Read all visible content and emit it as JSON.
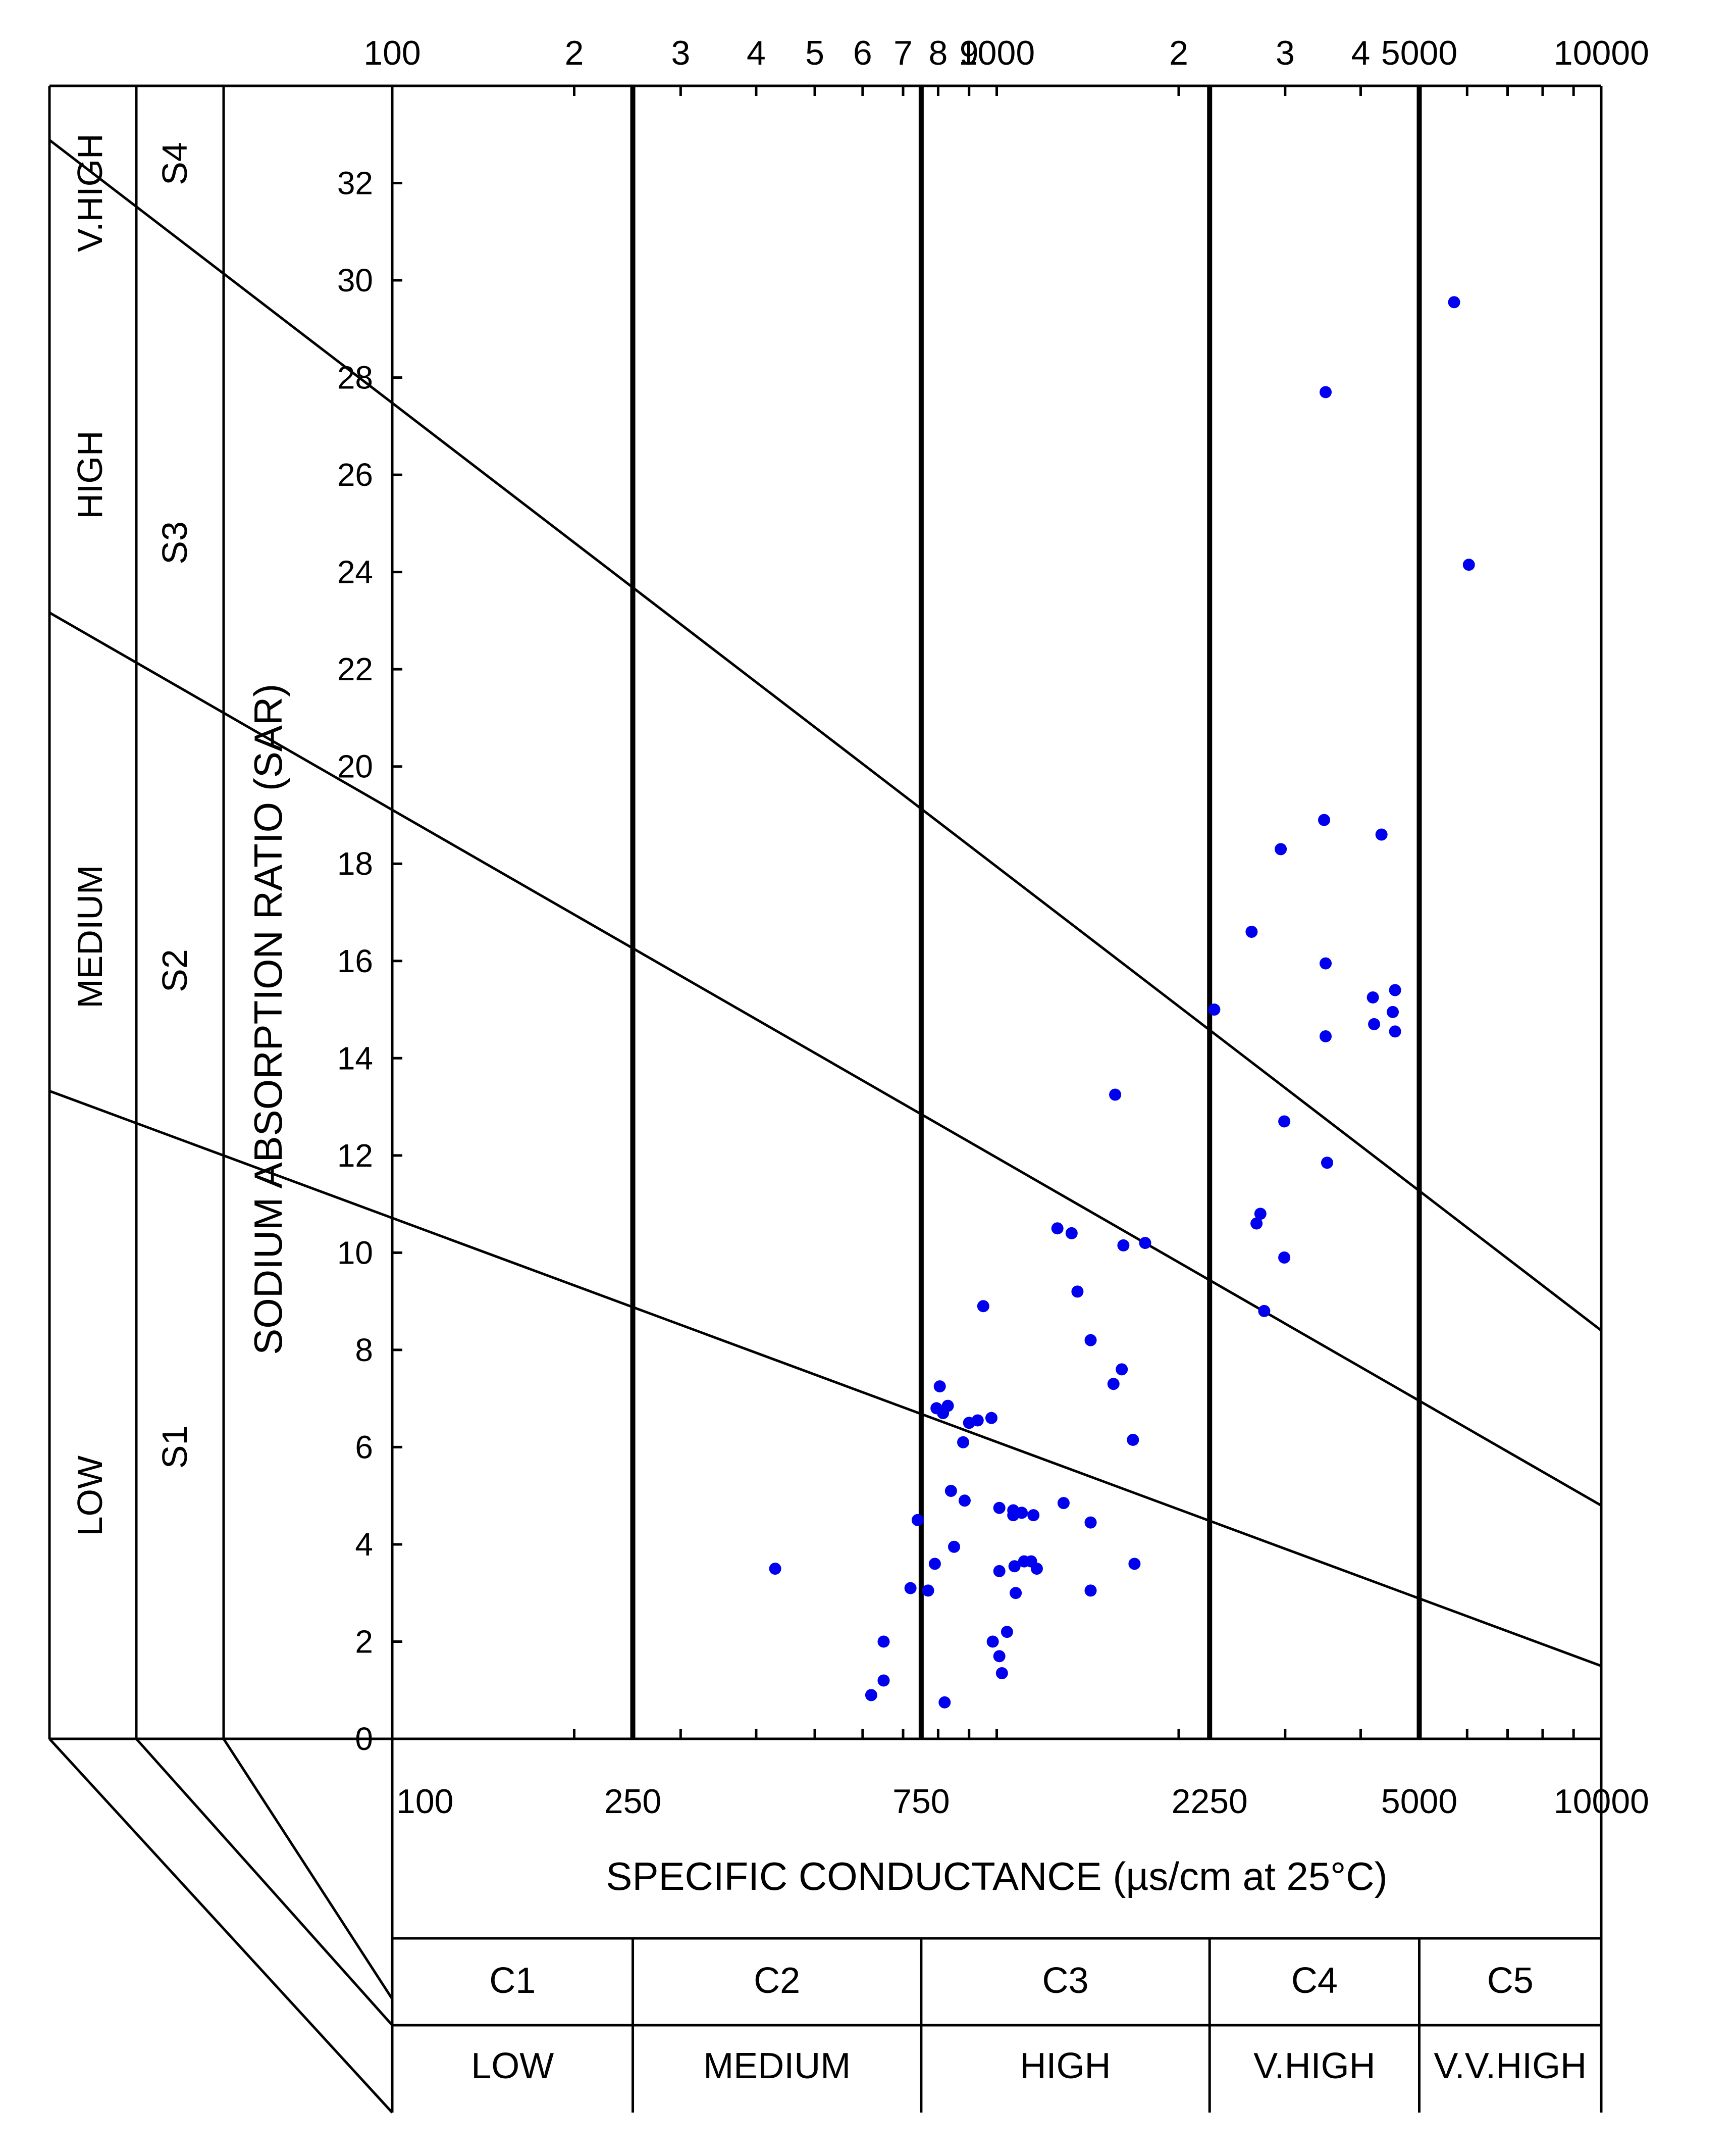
{
  "chart_data": {
    "type": "scatter",
    "title": "",
    "xlabel": "SPECIFIC CONDUCTANCE (µs/cm at 25°C)",
    "ylabel": "SODIUM ABSORPTION RATIO (SAR)",
    "x_scale": "log",
    "xlim": [
      100,
      10000
    ],
    "ylim": [
      0,
      34
    ],
    "grid": false,
    "legend": "none",
    "y_ticks": [
      "0",
      "2",
      "4",
      "6",
      "8",
      "10",
      "12",
      "14",
      "16",
      "18",
      "20",
      "22",
      "24",
      "26",
      "28",
      "30",
      "32"
    ],
    "x_ticks_top": [
      {
        "value": 100,
        "label": "100"
      },
      {
        "value": 200,
        "label": "2"
      },
      {
        "value": 300,
        "label": "3"
      },
      {
        "value": 400,
        "label": "4"
      },
      {
        "value": 500,
        "label": "5"
      },
      {
        "value": 600,
        "label": "6"
      },
      {
        "value": 700,
        "label": "7"
      },
      {
        "value": 800,
        "label": "8"
      },
      {
        "value": 900,
        "label": "9"
      },
      {
        "value": 1000,
        "label": "1000"
      },
      {
        "value": 2000,
        "label": "2"
      },
      {
        "value": 3000,
        "label": "3"
      },
      {
        "value": 4000,
        "label": "4"
      },
      {
        "value": 5000,
        "label": "5000"
      },
      {
        "value": 10000,
        "label": "10000"
      }
    ],
    "x_ticks_bottom": [
      {
        "value": 100,
        "label": "100"
      },
      {
        "value": 250,
        "label": "250"
      },
      {
        "value": 750,
        "label": "750"
      },
      {
        "value": 2250,
        "label": "2250"
      },
      {
        "value": 5000,
        "label": "5000"
      },
      {
        "value": 10000,
        "label": "10000"
      }
    ],
    "salinity_boundaries": [
      250,
      750,
      2250,
      5000
    ],
    "salinity_classes": [
      {
        "code": "C1",
        "name": "LOW"
      },
      {
        "code": "C2",
        "name": "MEDIUM"
      },
      {
        "code": "C3",
        "name": "HIGH"
      },
      {
        "code": "C4",
        "name": "V.HIGH"
      },
      {
        "code": "C5",
        "name": "V.V.HIGH"
      }
    ],
    "sodium_classes": [
      {
        "code": "S1",
        "name": "LOW"
      },
      {
        "code": "S2",
        "name": "MEDIUM"
      },
      {
        "code": "S3",
        "name": "HIGH"
      },
      {
        "code": "S4",
        "name": "V.HIGH"
      }
    ],
    "sodium_boundaries": [
      {
        "from": [
          100,
          10.0
        ],
        "to": [
          10000,
          1.5
        ]
      },
      {
        "from": [
          100,
          18.0
        ],
        "to": [
          10000,
          4.8
        ]
      },
      {
        "from": [
          100,
          26.0
        ],
        "to": [
          10000,
          8.4
        ]
      }
    ],
    "point_color": "#0000ee",
    "points": [
      [
        430,
        3.5
      ],
      [
        620,
        0.9
      ],
      [
        650,
        1.2
      ],
      [
        650,
        2.0
      ],
      [
        720,
        3.1
      ],
      [
        740,
        4.5
      ],
      [
        770,
        3.05
      ],
      [
        790,
        3.6
      ],
      [
        795,
        6.8
      ],
      [
        805,
        7.25
      ],
      [
        815,
        6.7
      ],
      [
        830,
        6.85
      ],
      [
        820,
        0.75
      ],
      [
        840,
        5.1
      ],
      [
        850,
        3.95
      ],
      [
        880,
        6.1
      ],
      [
        885,
        4.9
      ],
      [
        900,
        6.5
      ],
      [
        930,
        6.55
      ],
      [
        950,
        8.9
      ],
      [
        980,
        6.6
      ],
      [
        985,
        2.0
      ],
      [
        1010,
        1.7
      ],
      [
        1010,
        4.75
      ],
      [
        1010,
        3.45
      ],
      [
        1020,
        1.35
      ],
      [
        1040,
        2.2
      ],
      [
        1065,
        4.6
      ],
      [
        1065,
        4.7
      ],
      [
        1070,
        3.55
      ],
      [
        1075,
        3.0
      ],
      [
        1100,
        4.65
      ],
      [
        1110,
        3.65
      ],
      [
        1140,
        3.65
      ],
      [
        1150,
        4.6
      ],
      [
        1165,
        3.5
      ],
      [
        1260,
        10.5
      ],
      [
        1290,
        4.85
      ],
      [
        1330,
        10.4
      ],
      [
        1360,
        9.2
      ],
      [
        1430,
        8.2
      ],
      [
        1430,
        4.45
      ],
      [
        1430,
        3.05
      ],
      [
        1570,
        13.25
      ],
      [
        1560,
        7.3
      ],
      [
        1620,
        10.15
      ],
      [
        1610,
        7.6
      ],
      [
        1680,
        6.15
      ],
      [
        1690,
        3.6
      ],
      [
        1760,
        10.2
      ],
      [
        2290,
        15.0
      ],
      [
        2640,
        16.6
      ],
      [
        2690,
        10.6
      ],
      [
        2730,
        10.8
      ],
      [
        2770,
        8.8
      ],
      [
        2950,
        18.3
      ],
      [
        2990,
        12.7
      ],
      [
        2990,
        9.9
      ],
      [
        3480,
        18.9
      ],
      [
        3500,
        27.7
      ],
      [
        3500,
        15.95
      ],
      [
        3500,
        14.45
      ],
      [
        3520,
        11.85
      ],
      [
        4190,
        15.25
      ],
      [
        4210,
        14.7
      ],
      [
        4330,
        18.6
      ],
      [
        4520,
        14.95
      ],
      [
        4560,
        15.4
      ],
      [
        4560,
        14.55
      ],
      [
        5710,
        29.55
      ],
      [
        6040,
        24.15
      ]
    ]
  }
}
